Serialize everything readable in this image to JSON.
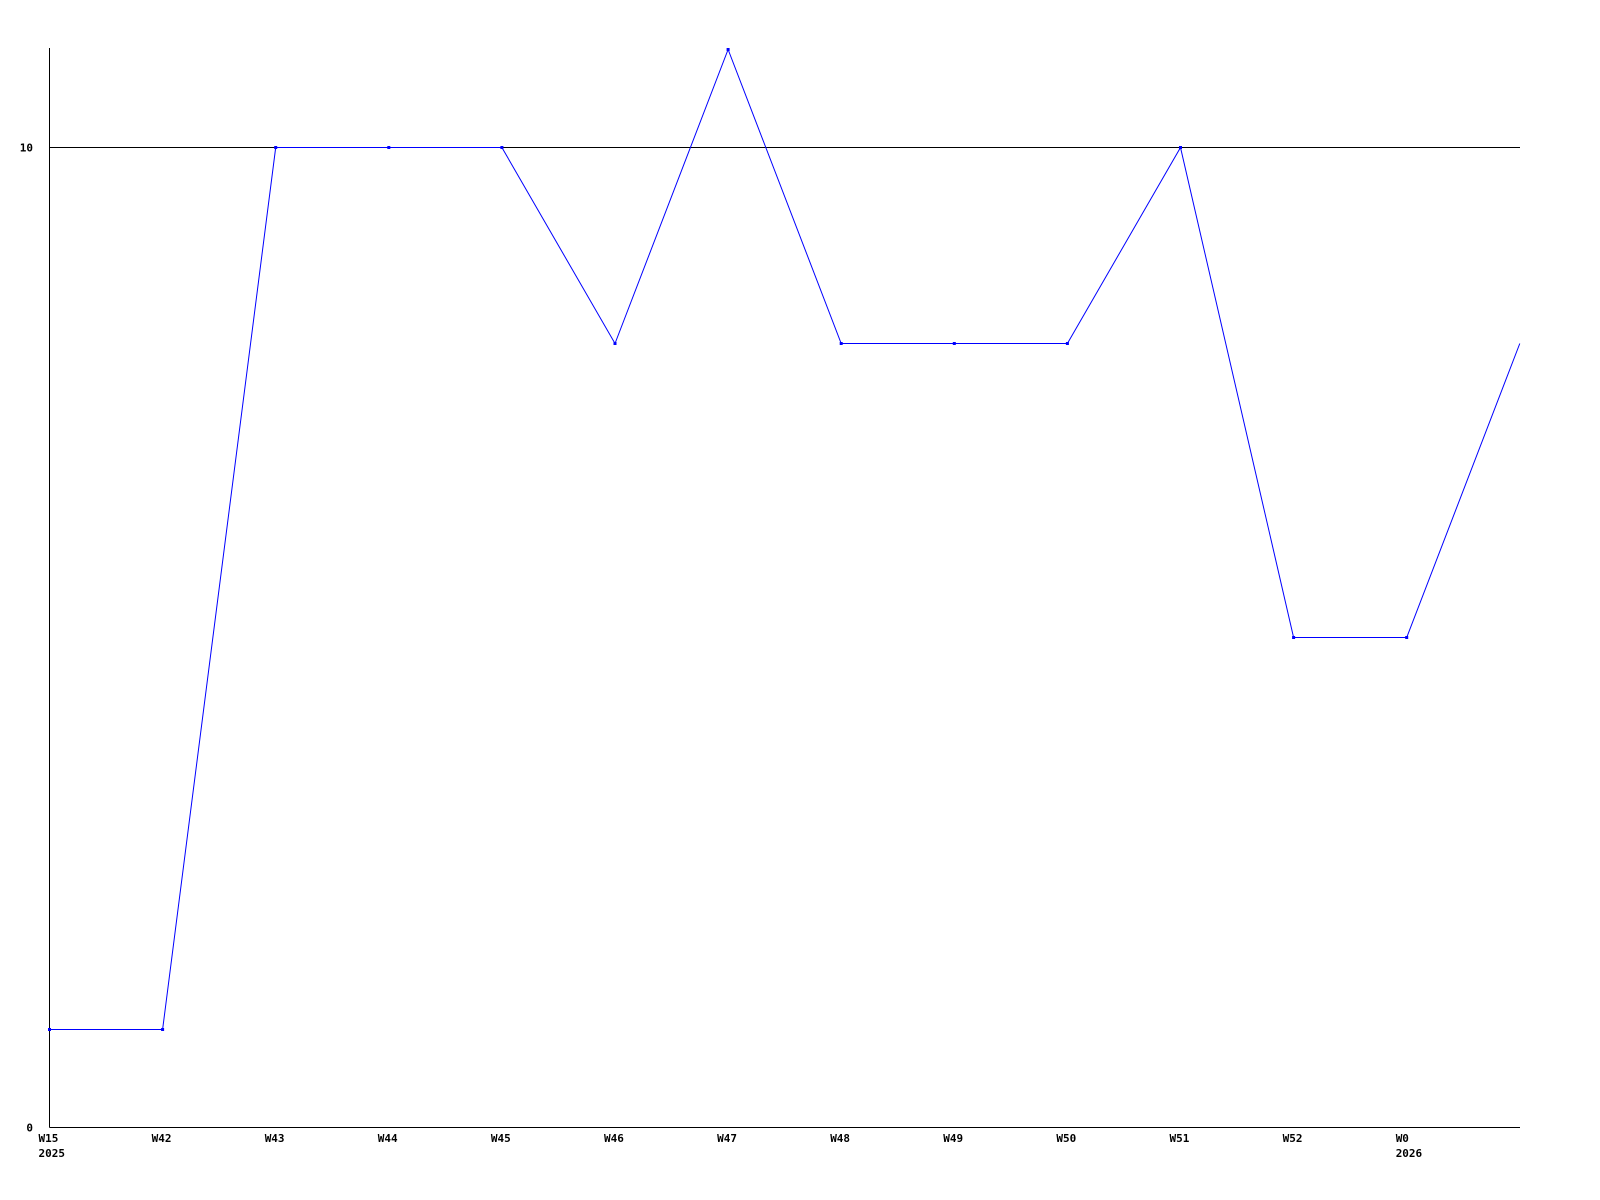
{
  "chart_data": {
    "type": "line",
    "title": "",
    "xlabel": "",
    "ylabel": "",
    "categories": [
      "W15",
      "W42",
      "W43",
      "W44",
      "W45",
      "W46",
      "W47",
      "W48",
      "W49",
      "W50",
      "W51",
      "W52",
      "W0",
      ""
    ],
    "category_sublabels": [
      "2025",
      "",
      "",
      "",
      "",
      "",
      "",
      "",
      "",
      "",
      "",
      "",
      "2026",
      ""
    ],
    "series": [
      {
        "values": [
          1,
          1,
          10,
          10,
          10,
          8,
          11,
          8,
          8,
          8,
          10,
          5,
          5,
          8
        ],
        "color": "#0000ff"
      }
    ],
    "ylim": [
      0,
      11
    ],
    "yticks": [
      0,
      10
    ],
    "ytick_labels": [
      "0",
      "10"
    ],
    "grid": "horizontal line at 10",
    "legend": "none"
  }
}
